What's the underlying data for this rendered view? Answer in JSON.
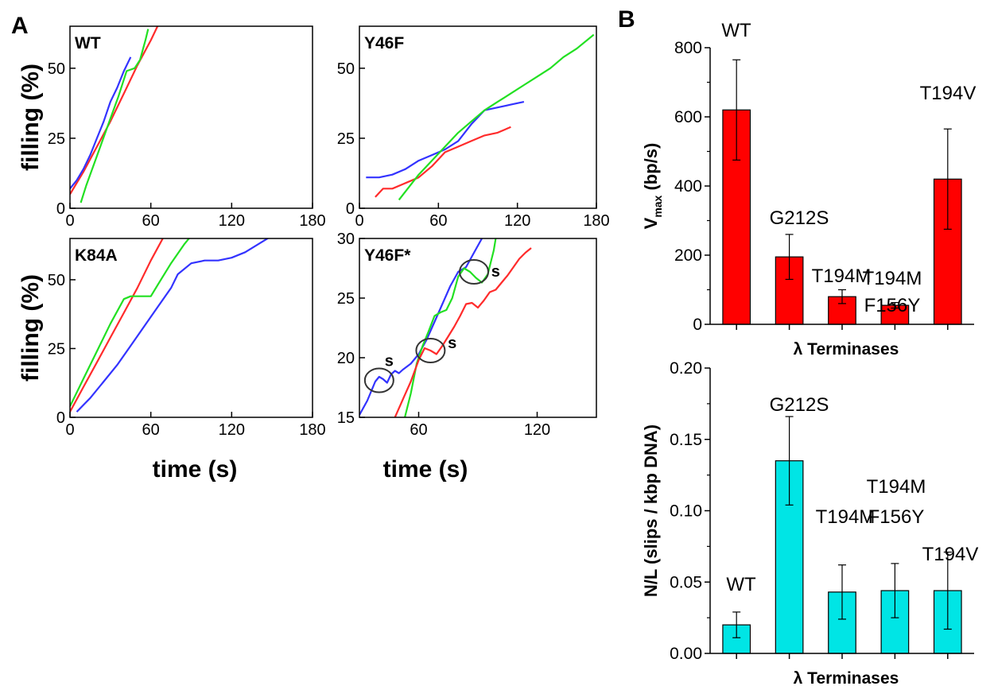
{
  "panels": {
    "A": "A",
    "B": "B"
  },
  "chart_data": [
    {
      "type": "line",
      "id": "wt",
      "title": "WT",
      "ylabel": "filling (%)",
      "xlim": [
        0,
        180
      ],
      "ylim": [
        0,
        65
      ],
      "xticks": [
        0,
        60,
        120,
        180
      ],
      "yticks": [
        0,
        25,
        50
      ],
      "series": [
        {
          "color": "#ff2b2b",
          "x": [
            0,
            10,
            20,
            30,
            40,
            50,
            60,
            66
          ],
          "y": [
            5,
            13,
            22,
            31,
            41,
            51,
            60,
            66
          ]
        },
        {
          "color": "#3333ff",
          "x": [
            0,
            5,
            10,
            15,
            20,
            25,
            30,
            35,
            40,
            45
          ],
          "y": [
            7,
            10,
            14,
            19,
            25,
            31,
            38,
            43,
            49,
            54
          ]
        },
        {
          "color": "#22e022",
          "x": [
            8,
            12,
            18,
            24,
            30,
            36,
            42,
            48,
            52,
            56,
            58
          ],
          "y": [
            2,
            8,
            16,
            24,
            32,
            40,
            49,
            50,
            53,
            60,
            64
          ]
        }
      ]
    },
    {
      "type": "line",
      "id": "y46f",
      "title": "Y46F",
      "xlim": [
        0,
        180
      ],
      "ylim": [
        0,
        65
      ],
      "xticks": [
        0,
        60,
        120,
        180
      ],
      "yticks": [
        0,
        25,
        50
      ],
      "series": [
        {
          "color": "#3333ff",
          "x": [
            5,
            15,
            25,
            35,
            45,
            55,
            65,
            75,
            85,
            95,
            105,
            115,
            125
          ],
          "y": [
            11,
            11,
            12,
            14,
            17,
            19,
            21,
            24,
            30,
            35,
            36,
            37,
            38
          ]
        },
        {
          "color": "#ff2b2b",
          "x": [
            12,
            18,
            25,
            35,
            45,
            55,
            65,
            75,
            85,
            95,
            105,
            115
          ],
          "y": [
            4,
            7,
            7,
            9,
            11,
            15,
            20,
            22,
            24,
            26,
            27,
            29
          ]
        },
        {
          "color": "#22e022",
          "x": [
            30,
            35,
            40,
            45,
            55,
            65,
            75,
            85,
            95,
            105,
            115,
            125,
            135,
            145,
            155,
            165,
            178
          ],
          "y": [
            3,
            6,
            9,
            12,
            17,
            22,
            27,
            31,
            35,
            38,
            41,
            44,
            47,
            50,
            54,
            57,
            62
          ]
        }
      ]
    },
    {
      "type": "line",
      "id": "k84a",
      "title": "K84A",
      "ylabel": "filling (%)",
      "xlabel": "time (s)",
      "xlim": [
        0,
        180
      ],
      "ylim": [
        0,
        65
      ],
      "xticks": [
        0,
        60,
        120,
        180
      ],
      "yticks": [
        0,
        25,
        50
      ],
      "series": [
        {
          "color": "#ff2b2b",
          "x": [
            0,
            10,
            20,
            30,
            40,
            50,
            60,
            70
          ],
          "y": [
            2,
            11,
            20,
            29,
            38,
            47,
            57,
            66
          ]
        },
        {
          "color": "#22e022",
          "x": [
            0,
            10,
            20,
            30,
            40,
            45,
            55,
            60,
            65,
            75,
            85,
            90
          ],
          "y": [
            4,
            14,
            24,
            34,
            43,
            44,
            44,
            44,
            48,
            56,
            63,
            66
          ]
        },
        {
          "color": "#3333ff",
          "x": [
            5,
            15,
            25,
            35,
            45,
            55,
            65,
            75,
            80,
            90,
            100,
            110,
            120,
            130,
            140,
            150,
            155
          ],
          "y": [
            2,
            7,
            13,
            19,
            26,
            33,
            40,
            47,
            52,
            56,
            57,
            57,
            58,
            60,
            63,
            66,
            66
          ]
        }
      ]
    },
    {
      "type": "line",
      "id": "y46f_star",
      "title": "Y46F*",
      "xlabel": "time (s)",
      "xlim": [
        30,
        150
      ],
      "ylim": [
        15,
        30
      ],
      "xticks": [
        60,
        120
      ],
      "yticks": [
        15,
        20,
        25,
        30
      ],
      "annotations": [
        "s",
        "s",
        "s"
      ],
      "series": [
        {
          "color": "#3333ff",
          "x": [
            30,
            34,
            38,
            40,
            42,
            44,
            46,
            48,
            50,
            52,
            56,
            60,
            64,
            68,
            72,
            76,
            80,
            84,
            88,
            92
          ],
          "y": [
            15.2,
            16.4,
            18.0,
            18.4,
            18.2,
            17.9,
            18.6,
            18.9,
            18.7,
            19.0,
            19.5,
            20.3,
            21.5,
            23.0,
            24.5,
            26.0,
            27.2,
            27.6,
            28.8,
            30.0
          ]
        },
        {
          "color": "#22e022",
          "x": [
            53,
            56,
            59,
            62,
            65,
            68,
            71,
            74,
            77,
            80,
            83,
            86,
            89,
            92,
            95,
            98,
            99
          ],
          "y": [
            15.0,
            17.0,
            19.5,
            21.0,
            22.2,
            23.5,
            23.8,
            24.0,
            25.0,
            26.8,
            27.5,
            27.2,
            26.7,
            26.3,
            27.0,
            29.0,
            30.0
          ]
        },
        {
          "color": "#ff2b2b",
          "x": [
            48,
            52,
            56,
            60,
            63,
            66,
            69,
            72,
            75,
            78,
            81,
            84,
            87,
            90,
            93,
            96,
            99,
            102,
            105,
            108,
            111,
            114,
            117
          ],
          "y": [
            15.0,
            16.5,
            18.0,
            19.8,
            20.8,
            20.6,
            20.3,
            21.0,
            21.8,
            22.6,
            23.5,
            24.5,
            24.6,
            24.2,
            24.8,
            25.5,
            25.7,
            26.3,
            26.9,
            27.6,
            28.3,
            28.8,
            29.2
          ]
        }
      ]
    },
    {
      "type": "bar",
      "id": "vmax",
      "xlabel": "λ Terminases",
      "ylabel_main": "V",
      "ylabel_sub": "max",
      "ylabel_rest": " (bp/s)",
      "ylim": [
        0,
        800
      ],
      "yticks": [
        0,
        200,
        400,
        600,
        800
      ],
      "bar_color": "#ff0000",
      "categories": [
        [
          "WT"
        ],
        [
          "G212S"
        ],
        [
          "T194M"
        ],
        [
          "T194M",
          "F156Y"
        ],
        [
          "T194V"
        ]
      ],
      "values": [
        620,
        195,
        80,
        55,
        420
      ],
      "errors": [
        145,
        65,
        20,
        8,
        145
      ]
    },
    {
      "type": "bar",
      "id": "slips",
      "xlabel": "λ Terminases",
      "ylabel": "N/L (slips / kbp DNA)",
      "ylim": [
        0,
        0.2
      ],
      "yticks": [
        "0.00",
        "0.05",
        "0.10",
        "0.15",
        "0.20"
      ],
      "bar_color": "#00e5e5",
      "categories": [
        [
          "WT"
        ],
        [
          "G212S"
        ],
        [
          "T194M"
        ],
        [
          "T194M",
          "F156Y"
        ],
        [
          "T194V"
        ]
      ],
      "values": [
        0.02,
        0.135,
        0.043,
        0.044,
        0.044
      ],
      "errors": [
        0.009,
        0.031,
        0.019,
        0.019,
        0.027
      ]
    }
  ]
}
